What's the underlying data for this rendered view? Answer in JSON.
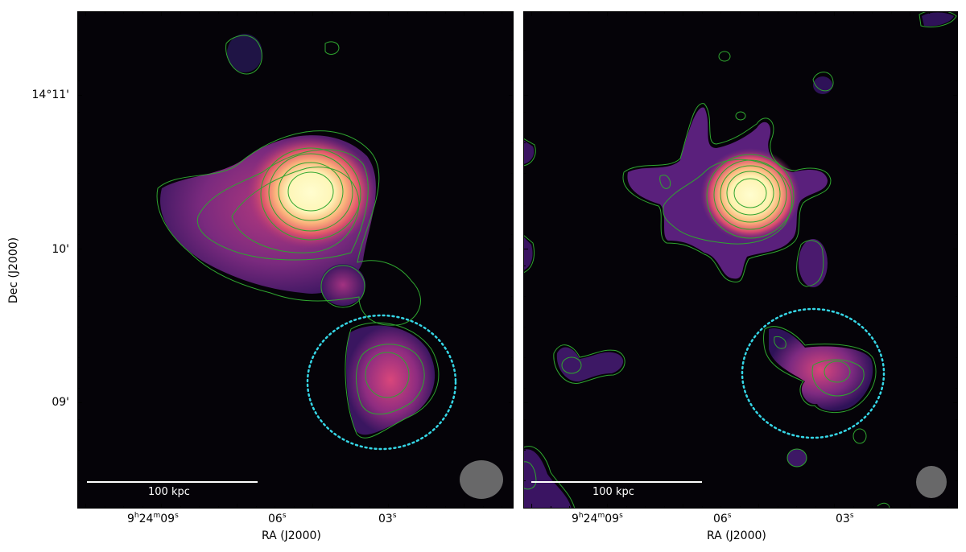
{
  "axes": {
    "ylabel": "Dec (J2000)",
    "xlabel": "RA (J2000)",
    "yticks": [
      "14°11'",
      "10'",
      "09'"
    ],
    "xticks": [
      {
        "h": "9",
        "hs": "h",
        "m": "24",
        "ms": "m",
        "s": "09",
        "ss": "s"
      },
      {
        "s": "06",
        "ss": "s"
      },
      {
        "s": "03",
        "ss": "s"
      }
    ]
  },
  "panels": [
    {
      "name": "left",
      "scalebar_label": "100 kpc"
    },
    {
      "name": "right",
      "scalebar_label": "100 kpc"
    }
  ],
  "colors": {
    "background": "#050308",
    "contour": "#2fa52f",
    "region": "#35d6e6",
    "scalebar": "#ffffff",
    "beam": "#7a7a7a"
  }
}
